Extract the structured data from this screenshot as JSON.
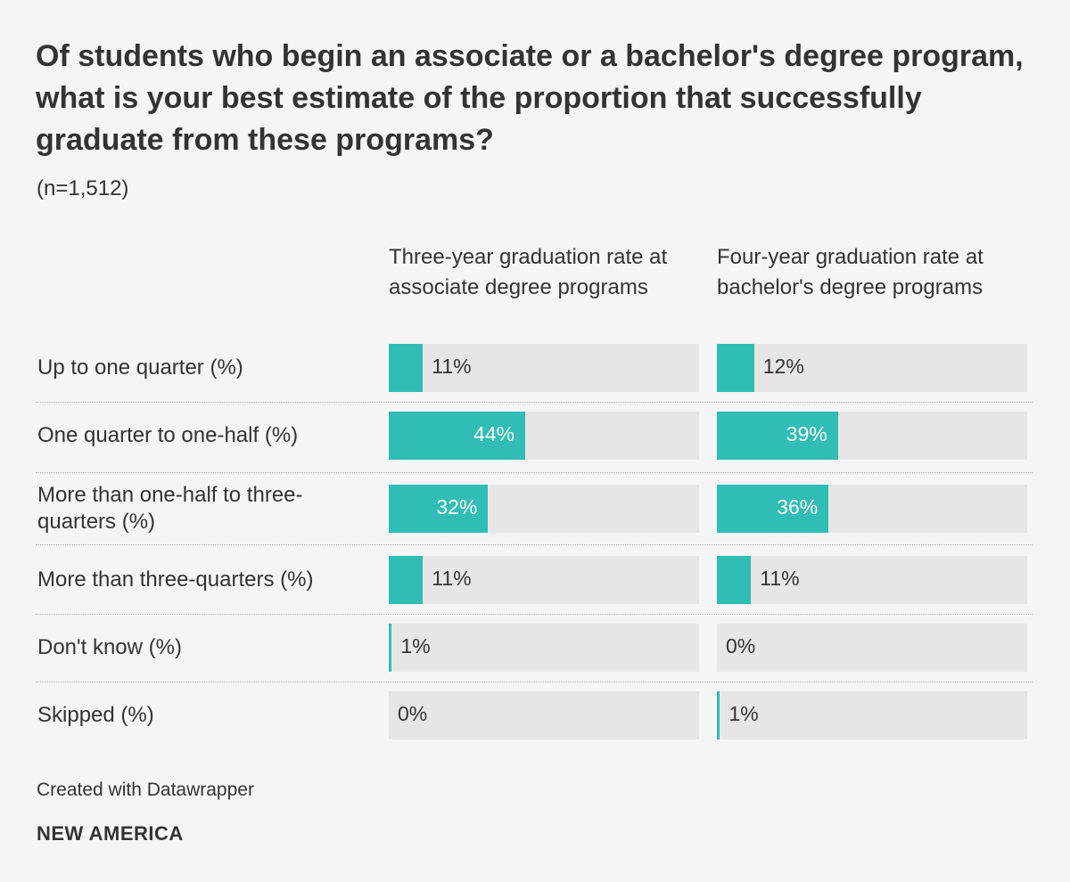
{
  "title": "Of students who begin an associate or a bachelor's degree program, what is your best estimate of the proportion that successfully graduate from these programs?",
  "subtitle": "(n=1,512)",
  "colors": {
    "bar": "#30bdb5",
    "track": "#e6e6e6",
    "background": "#f5f5f5"
  },
  "chart_data": {
    "type": "bar",
    "orientation": "horizontal",
    "categories": [
      "Up to one quarter (%)",
      "One quarter to one-half (%)",
      "More than one-half to three-quarters (%)",
      "More than three-quarters (%)",
      "Don't know (%)",
      "Skipped (%)"
    ],
    "series": [
      {
        "name": "Three-year graduation rate at associate degree programs",
        "values": [
          11,
          44,
          32,
          11,
          1,
          0
        ]
      },
      {
        "name": "Four-year graduation rate at bachelor's degree programs",
        "values": [
          12,
          39,
          36,
          11,
          0,
          1
        ]
      }
    ],
    "value_labels": [
      [
        "11%",
        "44%",
        "32%",
        "11%",
        "1%",
        "0%"
      ],
      [
        "12%",
        "39%",
        "36%",
        "11%",
        "0%",
        "1%"
      ]
    ],
    "xlim": [
      0,
      100
    ],
    "grid": false
  },
  "footer": {
    "credit": "Created with Datawrapper",
    "logo": "NEW AMERICA"
  }
}
